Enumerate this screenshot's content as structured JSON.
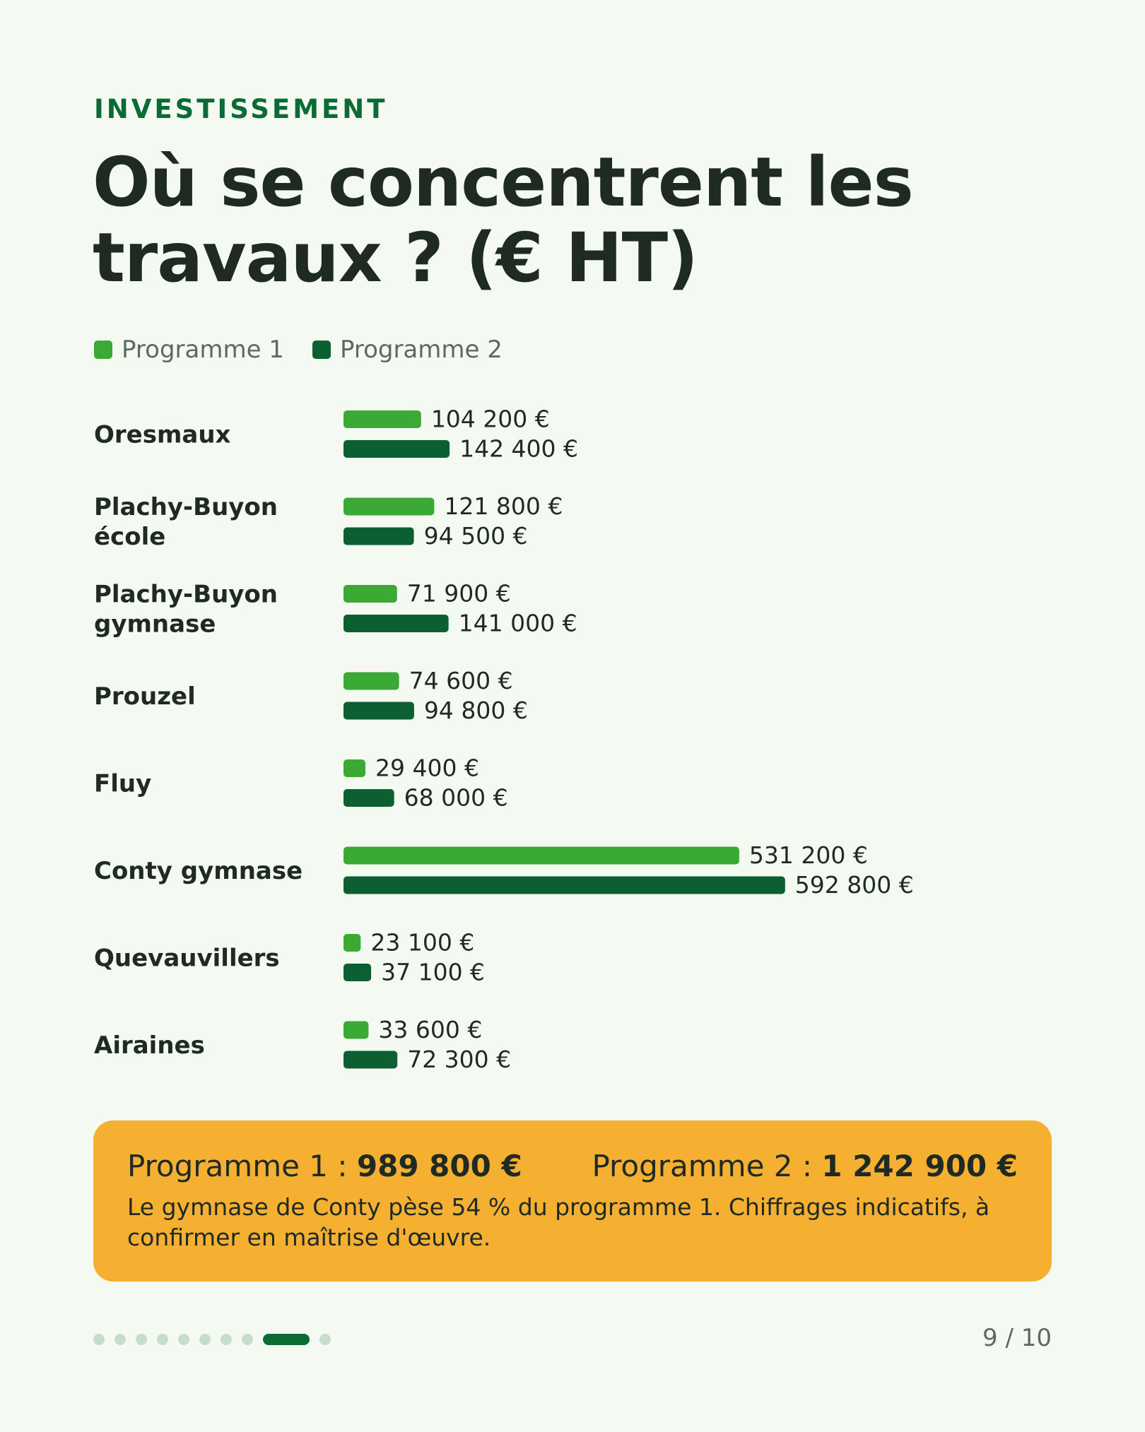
{
  "header": {
    "eyebrow": "INVESTISSEMENT",
    "title_line1": "Où se concentrent les",
    "title_line2": "travaux ? (€ HT)"
  },
  "colors": {
    "programme1": "#3aaa35",
    "programme2": "#0b5f31",
    "accent": "#0b6b35",
    "summary_bg": "#f5b031"
  },
  "chart_data": {
    "type": "bar",
    "orientation": "horizontal",
    "title": "Où se concentrent les travaux ? (€ HT)",
    "categories": [
      [
        "Oresmaux"
      ],
      [
        "Plachy-Buyon",
        "école"
      ],
      [
        "Plachy-Buyon",
        "gymnase"
      ],
      [
        "Prouzel"
      ],
      [
        "Fluy"
      ],
      [
        "Conty gymnase"
      ],
      [
        "Quevauvillers"
      ],
      [
        "Airaines"
      ]
    ],
    "series": [
      {
        "name": "Programme 1",
        "values": [
          104200,
          121800,
          71900,
          74600,
          29400,
          531200,
          23100,
          33600
        ],
        "labels": [
          "104 200 €",
          "121 800 €",
          "71 900 €",
          "74 600 €",
          "29 400 €",
          "531 200 €",
          "23 100 €",
          "33 600 €"
        ]
      },
      {
        "name": "Programme 2",
        "values": [
          142400,
          94500,
          141000,
          94800,
          68000,
          592800,
          37100,
          72300
        ],
        "labels": [
          "142 400 €",
          "94 500 €",
          "141 000 €",
          "94 800 €",
          "68 000 €",
          "592 800 €",
          "37 100 €",
          "72 300 €"
        ]
      }
    ],
    "legend": "top-left",
    "grid": false
  },
  "summary": {
    "p1_label": "Programme 1 : ",
    "p1_total": "989 800 €",
    "p2_label": "Programme 2 : ",
    "p2_total": "1 242 900 €",
    "note": "Le gymnase de Conty pèse 54 % du programme 1. Chiffrages indicatifs, à confirmer en maîtrise d'œuvre."
  },
  "pagination": {
    "current": 9,
    "total": 10,
    "label": "9 / 10"
  }
}
